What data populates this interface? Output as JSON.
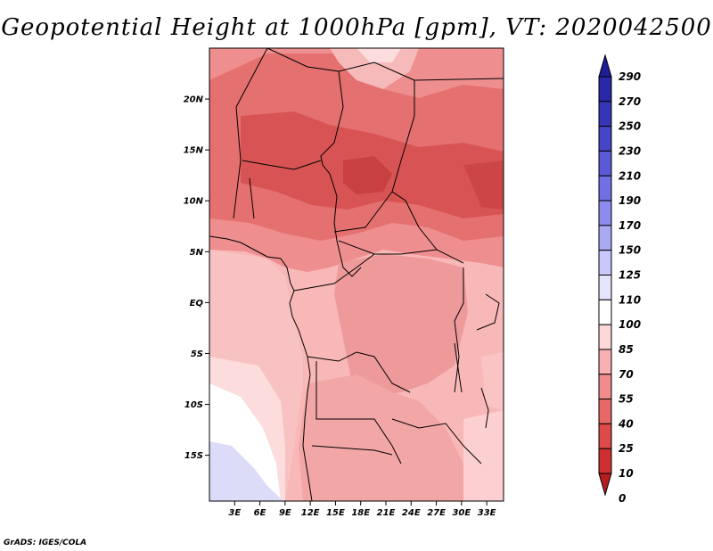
{
  "title": "Geopotential Height at 1000hPa [gpm], VT: 2020042500",
  "credit": "GrADS: IGES/COLA",
  "map": {
    "lat_labels": [
      "20N",
      "15N",
      "10N",
      "5N",
      "EQ",
      "5S",
      "10S",
      "15S"
    ],
    "lat_values": [
      20,
      15,
      10,
      5,
      0,
      -5,
      -10,
      -15
    ],
    "lon_labels": [
      "3E",
      "6E",
      "9E",
      "12E",
      "15E",
      "18E",
      "21E",
      "24E",
      "27E",
      "30E",
      "33E"
    ],
    "lon_values": [
      3,
      6,
      9,
      12,
      15,
      18,
      21,
      24,
      27,
      30,
      33
    ],
    "lon_range": [
      0,
      35
    ],
    "lat_range": [
      -19.5,
      25
    ]
  },
  "colorbar": {
    "labels": [
      "290",
      "270",
      "250",
      "230",
      "210",
      "190",
      "170",
      "150",
      "125",
      "110",
      "100",
      "85",
      "70",
      "55",
      "40",
      "25",
      "10",
      "0"
    ],
    "colors": [
      "#1e1e96",
      "#2828a8",
      "#3535b8",
      "#4545c8",
      "#5a5ad8",
      "#7070e4",
      "#8c8cee",
      "#aaaaf4",
      "#c8c8fa",
      "#e4e4fc",
      "#ffffff",
      "#fcd8d8",
      "#f8b0b0",
      "#f08c8c",
      "#e86868",
      "#dc4a4a",
      "#cc3030",
      "#b41e1e"
    ]
  }
}
